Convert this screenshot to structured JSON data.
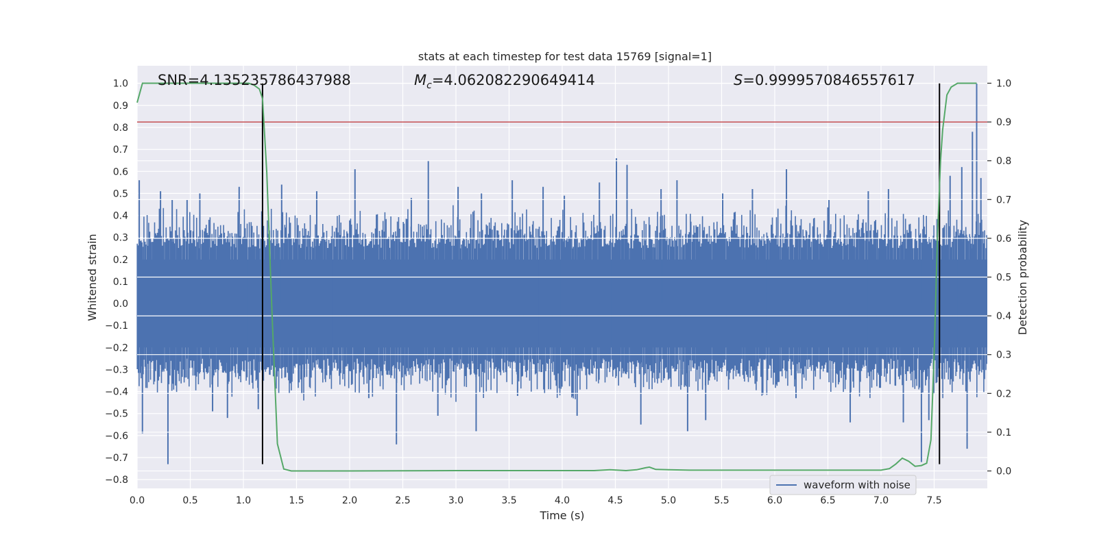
{
  "chart_data": {
    "type": "line",
    "title": "stats at each timestep for test data 15769 [signal=1]",
    "xlabel": "Time (s)",
    "ylabel": "Whitened strain",
    "y2label": "Detection probability",
    "xlim": [
      0.0,
      8.0
    ],
    "ylim": [
      -0.84,
      1.08
    ],
    "y2lim": [
      -0.045,
      1.045
    ],
    "xticks": [
      "0.0",
      "0.5",
      "1.0",
      "1.5",
      "2.0",
      "2.5",
      "3.0",
      "3.5",
      "4.0",
      "4.5",
      "5.0",
      "5.5",
      "6.0",
      "6.5",
      "7.0",
      "7.5"
    ],
    "yticks": [
      "1.0",
      "0.9",
      "0.8",
      "0.7",
      "0.6",
      "0.5",
      "0.4",
      "0.3",
      "0.2",
      "0.1",
      "0.0",
      "−0.1",
      "−0.2",
      "−0.3",
      "−0.4",
      "−0.5",
      "−0.6",
      "−0.7",
      "−0.8"
    ],
    "y2ticks": [
      "1.0",
      "0.9",
      "0.8",
      "0.7",
      "0.6",
      "0.5",
      "0.4",
      "0.3",
      "0.2",
      "0.1",
      "0.0"
    ],
    "annotations": {
      "snr": "SNR=4.135235786437988",
      "mc_symbol": "M",
      "mc_sub": "c",
      "mc_value": "=4.062082290649414",
      "s_symbol": "S",
      "s_value": "=0.9999570846557617"
    },
    "legend": {
      "label": "waveform with noise",
      "position": "lower-right"
    },
    "threshold_y2": 0.9,
    "vertical_lines_x": [
      1.18,
      7.55
    ],
    "vertical_lines_range_y": [
      -0.73,
      1.0
    ],
    "waveform": {
      "name": "waveform with noise",
      "color": "#4c72b0",
      "core_amplitude": 0.2,
      "typical_peak_range": [
        0.25,
        0.45
      ],
      "spikes": [
        {
          "t": 0.02,
          "v": 0.56
        },
        {
          "t": 0.05,
          "v": -0.59
        },
        {
          "t": 0.22,
          "v": 0.51
        },
        {
          "t": 0.29,
          "v": -0.73
        },
        {
          "t": 0.33,
          "v": 0.47
        },
        {
          "t": 0.47,
          "v": 0.47
        },
        {
          "t": 0.59,
          "v": 0.5
        },
        {
          "t": 0.71,
          "v": -0.49
        },
        {
          "t": 0.85,
          "v": -0.52
        },
        {
          "t": 0.96,
          "v": 0.53
        },
        {
          "t": 1.14,
          "v": -0.48
        },
        {
          "t": 1.36,
          "v": 0.54
        },
        {
          "t": 1.55,
          "v": -0.41
        },
        {
          "t": 1.69,
          "v": 0.51
        },
        {
          "t": 2.05,
          "v": 0.61
        },
        {
          "t": 2.18,
          "v": -0.43
        },
        {
          "t": 2.44,
          "v": -0.64
        },
        {
          "t": 2.58,
          "v": 0.48
        },
        {
          "t": 2.74,
          "v": 0.65
        },
        {
          "t": 2.83,
          "v": -0.51
        },
        {
          "t": 3.02,
          "v": 0.53
        },
        {
          "t": 3.19,
          "v": -0.58
        },
        {
          "t": 3.24,
          "v": 0.5
        },
        {
          "t": 3.53,
          "v": 0.56
        },
        {
          "t": 3.58,
          "v": -0.42
        },
        {
          "t": 3.82,
          "v": 0.53
        },
        {
          "t": 4.02,
          "v": 0.49
        },
        {
          "t": 4.14,
          "v": -0.51
        },
        {
          "t": 4.35,
          "v": 0.55
        },
        {
          "t": 4.51,
          "v": 0.66
        },
        {
          "t": 4.61,
          "v": 0.63
        },
        {
          "t": 4.74,
          "v": -0.55
        },
        {
          "t": 4.93,
          "v": 0.52
        },
        {
          "t": 5.08,
          "v": 0.56
        },
        {
          "t": 5.18,
          "v": -0.58
        },
        {
          "t": 5.35,
          "v": -0.53
        },
        {
          "t": 5.51,
          "v": 0.5
        },
        {
          "t": 5.79,
          "v": 0.52
        },
        {
          "t": 6.11,
          "v": 0.61
        },
        {
          "t": 6.2,
          "v": -0.43
        },
        {
          "t": 6.51,
          "v": 0.47
        },
        {
          "t": 6.71,
          "v": -0.54
        },
        {
          "t": 6.88,
          "v": 0.51
        },
        {
          "t": 7.07,
          "v": 0.52
        },
        {
          "t": 7.21,
          "v": -0.54
        },
        {
          "t": 7.38,
          "v": -0.72
        },
        {
          "t": 7.45,
          "v": -0.53
        },
        {
          "t": 7.65,
          "v": 0.58
        },
        {
          "t": 7.76,
          "v": 0.62
        },
        {
          "t": 7.81,
          "v": -0.66
        },
        {
          "t": 7.86,
          "v": 0.78
        },
        {
          "t": 7.9,
          "v": 1.0
        },
        {
          "t": 7.94,
          "v": 0.57
        }
      ]
    },
    "probability": {
      "name": "detection probability",
      "color": "#55a868",
      "x": [
        0.0,
        0.05,
        0.1,
        0.2,
        0.4,
        0.6,
        0.8,
        1.0,
        1.05,
        1.1,
        1.15,
        1.18,
        1.22,
        1.27,
        1.32,
        1.38,
        1.45,
        1.6,
        2.0,
        3.0,
        4.0,
        4.3,
        4.45,
        4.6,
        4.7,
        4.78,
        4.82,
        4.88,
        5.0,
        5.2,
        5.6,
        5.8,
        6.0,
        6.5,
        7.0,
        7.08,
        7.14,
        7.2,
        7.26,
        7.32,
        7.38,
        7.43,
        7.47,
        7.5,
        7.53,
        7.56,
        7.58,
        7.62,
        7.66,
        7.72,
        7.8,
        7.9
      ],
      "y": [
        0.95,
        1.0,
        1.0,
        1.0,
        1.0,
        1.0,
        1.0,
        1.0,
        1.0,
        0.995,
        0.985,
        0.96,
        0.77,
        0.4,
        0.07,
        0.005,
        0.0,
        0.0,
        0.0,
        0.001,
        0.001,
        0.001,
        0.003,
        0.001,
        0.003,
        0.008,
        0.01,
        0.004,
        0.003,
        0.002,
        0.002,
        0.002,
        0.002,
        0.002,
        0.002,
        0.006,
        0.018,
        0.033,
        0.025,
        0.012,
        0.014,
        0.02,
        0.08,
        0.3,
        0.6,
        0.8,
        0.88,
        0.97,
        0.99,
        1.0,
        1.0,
        1.0
      ]
    }
  }
}
